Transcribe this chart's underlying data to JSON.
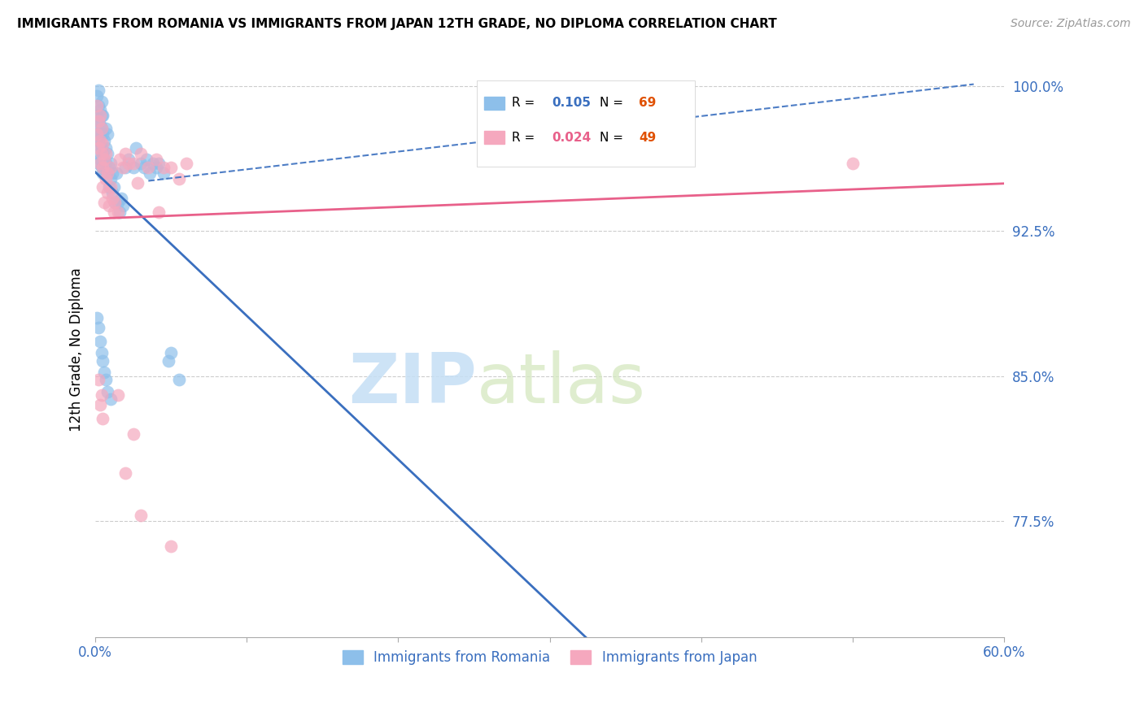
{
  "title": "IMMIGRANTS FROM ROMANIA VS IMMIGRANTS FROM JAPAN 12TH GRADE, NO DIPLOMA CORRELATION CHART",
  "source": "Source: ZipAtlas.com",
  "ylabel": "12th Grade, No Diploma",
  "legend_romania": "Immigrants from Romania",
  "legend_japan": "Immigrants from Japan",
  "R_romania": 0.105,
  "N_romania": 69,
  "R_japan": 0.024,
  "N_japan": 49,
  "xlim": [
    0.0,
    0.6
  ],
  "ylim": [
    0.715,
    1.012
  ],
  "yticks": [
    0.775,
    0.85,
    0.925,
    1.0
  ],
  "ytick_labels": [
    "77.5%",
    "85.0%",
    "92.5%",
    "100.0%"
  ],
  "xticks": [
    0.0,
    0.1,
    0.2,
    0.3,
    0.4,
    0.5,
    0.6
  ],
  "xtick_labels": [
    "0.0%",
    "",
    "",
    "",
    "",
    "",
    "60.0%"
  ],
  "color_romania": "#8dbfea",
  "color_japan": "#f5a8be",
  "trend_color_romania": "#3a6fbf",
  "trend_color_japan": "#e8608a",
  "watermark_zip": "ZIP",
  "watermark_atlas": "atlas",
  "romania_x": [
    0.001,
    0.001,
    0.001,
    0.002,
    0.002,
    0.002,
    0.002,
    0.002,
    0.002,
    0.003,
    0.003,
    0.003,
    0.003,
    0.003,
    0.004,
    0.004,
    0.004,
    0.004,
    0.004,
    0.005,
    0.005,
    0.005,
    0.005,
    0.006,
    0.006,
    0.006,
    0.007,
    0.007,
    0.007,
    0.008,
    0.008,
    0.008,
    0.009,
    0.009,
    0.01,
    0.01,
    0.011,
    0.011,
    0.012,
    0.013,
    0.014,
    0.015,
    0.016,
    0.017,
    0.018,
    0.02,
    0.022,
    0.025,
    0.027,
    0.03,
    0.032,
    0.034,
    0.036,
    0.038,
    0.04,
    0.042,
    0.045,
    0.048,
    0.05,
    0.055,
    0.001,
    0.002,
    0.003,
    0.004,
    0.005,
    0.006,
    0.007,
    0.008,
    0.01
  ],
  "romania_y": [
    0.975,
    0.985,
    0.995,
    0.96,
    0.972,
    0.982,
    0.99,
    0.998,
    0.965,
    0.97,
    0.98,
    0.988,
    0.975,
    0.962,
    0.968,
    0.978,
    0.985,
    0.992,
    0.958,
    0.965,
    0.975,
    0.955,
    0.985,
    0.962,
    0.972,
    0.955,
    0.96,
    0.968,
    0.978,
    0.955,
    0.965,
    0.975,
    0.958,
    0.948,
    0.952,
    0.96,
    0.955,
    0.945,
    0.948,
    0.94,
    0.955,
    0.94,
    0.935,
    0.942,
    0.938,
    0.958,
    0.962,
    0.958,
    0.968,
    0.96,
    0.958,
    0.962,
    0.955,
    0.96,
    0.958,
    0.96,
    0.955,
    0.858,
    0.862,
    0.848,
    0.88,
    0.875,
    0.868,
    0.862,
    0.858,
    0.852,
    0.848,
    0.842,
    0.838
  ],
  "japan_x": [
    0.001,
    0.001,
    0.002,
    0.002,
    0.003,
    0.003,
    0.003,
    0.004,
    0.004,
    0.005,
    0.005,
    0.005,
    0.006,
    0.006,
    0.007,
    0.007,
    0.008,
    0.008,
    0.009,
    0.01,
    0.01,
    0.011,
    0.012,
    0.013,
    0.015,
    0.016,
    0.018,
    0.02,
    0.022,
    0.025,
    0.028,
    0.03,
    0.035,
    0.04,
    0.042,
    0.045,
    0.05,
    0.055,
    0.06,
    0.5,
    0.002,
    0.003,
    0.004,
    0.005,
    0.015,
    0.02,
    0.025,
    0.03,
    0.05
  ],
  "japan_y": [
    0.975,
    0.99,
    0.968,
    0.982,
    0.972,
    0.985,
    0.96,
    0.965,
    0.978,
    0.958,
    0.97,
    0.948,
    0.962,
    0.94,
    0.952,
    0.965,
    0.945,
    0.955,
    0.938,
    0.948,
    0.958,
    0.942,
    0.935,
    0.94,
    0.935,
    0.962,
    0.958,
    0.965,
    0.96,
    0.96,
    0.95,
    0.965,
    0.958,
    0.962,
    0.935,
    0.958,
    0.958,
    0.952,
    0.96,
    0.96,
    0.848,
    0.835,
    0.84,
    0.828,
    0.84,
    0.8,
    0.82,
    0.778,
    0.762
  ]
}
